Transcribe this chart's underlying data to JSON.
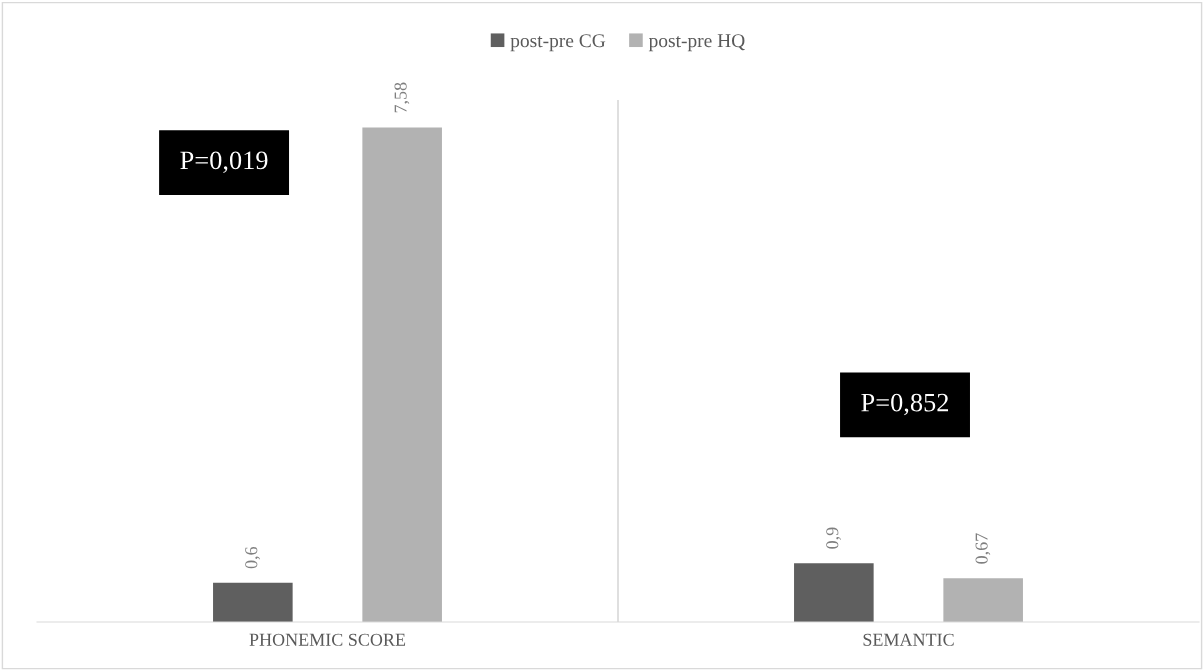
{
  "chart_data": {
    "type": "bar",
    "categories": [
      "PHONEMIC SCORE",
      "SEMANTIC"
    ],
    "series": [
      {
        "name": "post-pre CG",
        "color": "#5f5f5f",
        "values": [
          0.6,
          0.9
        ],
        "value_labels": [
          "0,6",
          "0,9"
        ]
      },
      {
        "name": "post-pre HQ",
        "color": "#b2b2b2",
        "values": [
          7.58,
          0.67
        ],
        "value_labels": [
          "7,58",
          "0,67"
        ]
      }
    ],
    "ylim": [
      0,
      8
    ],
    "tick_labels": "x",
    "annotations": [
      "P=0,019",
      "P=0,852"
    ],
    "legend": "top",
    "grid": false
  }
}
